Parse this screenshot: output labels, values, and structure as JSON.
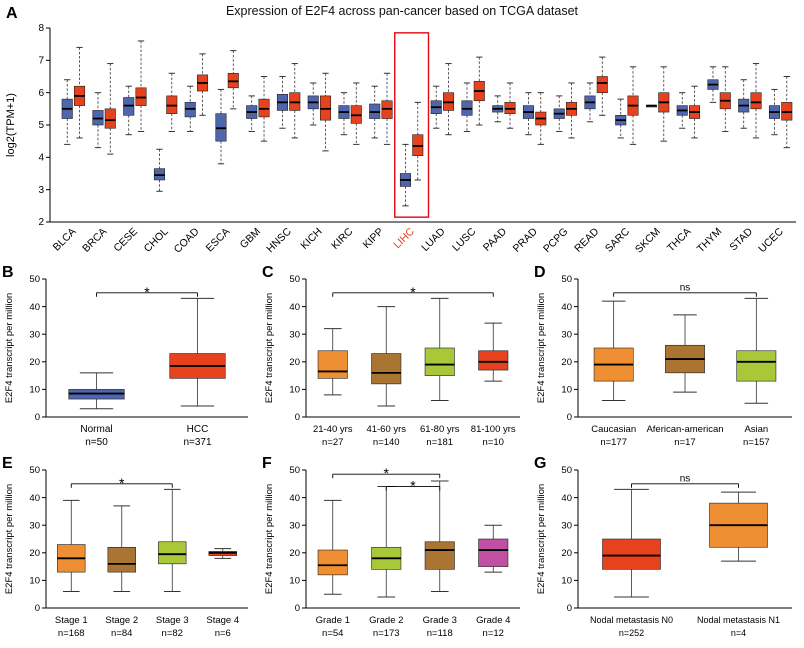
{
  "colors": {
    "normal_blue": "#4f66ac",
    "tumor_red": "#e6421e",
    "orange": "#ef8f33",
    "brown": "#aa7433",
    "green": "#a8c83a",
    "magenta": "#c150a5",
    "highlight_red": "#e30613",
    "axis_black": "#000000"
  },
  "chart_data": [
    {
      "id": "A",
      "letter": "A",
      "type": "paired_box",
      "title": "Expression of E2F4 across pan-cancer based on TCGA dataset",
      "ylabel": "log2(TPM+1)",
      "ylim": [
        2,
        8
      ],
      "yticks": [
        2,
        3,
        4,
        5,
        6,
        7,
        8
      ],
      "highlight": "LIHC",
      "series": [
        {
          "name": "Normal",
          "color": "normal_blue"
        },
        {
          "name": "Tumor",
          "color": "tumor_red"
        }
      ],
      "categories": [
        "BLCA",
        "BRCA",
        "CESE",
        "CHOL",
        "COAD",
        "ESCA",
        "GBM",
        "HNSC",
        "KICH",
        "KIRC",
        "KIPP",
        "LIHC",
        "LUAD",
        "LUSC",
        "PAAD",
        "PRAD",
        "PCPG",
        "READ",
        "SARC",
        "SKCM",
        "THCA",
        "THYM",
        "STAD",
        "UCEC"
      ],
      "normal": [
        [
          4.4,
          5.2,
          5.5,
          5.8,
          6.4
        ],
        [
          4.3,
          5.0,
          5.2,
          5.45,
          6.0
        ],
        [
          4.7,
          5.3,
          5.6,
          5.85,
          6.2
        ],
        [
          2.95,
          3.3,
          3.45,
          3.65,
          4.25
        ],
        [
          4.8,
          5.25,
          5.5,
          5.7,
          6.2
        ],
        [
          3.8,
          4.5,
          4.9,
          5.35,
          6.1
        ],
        [
          4.8,
          5.2,
          5.4,
          5.6,
          5.9
        ],
        [
          4.9,
          5.45,
          5.7,
          5.95,
          6.5
        ],
        [
          5.0,
          5.5,
          5.7,
          5.9,
          6.3
        ],
        [
          4.7,
          5.2,
          5.4,
          5.6,
          6.0
        ],
        [
          4.6,
          5.2,
          5.4,
          5.65,
          6.2
        ],
        [
          2.5,
          3.1,
          3.3,
          3.5,
          4.4
        ],
        [
          4.9,
          5.35,
          5.55,
          5.75,
          6.2
        ],
        [
          4.8,
          5.3,
          5.5,
          5.75,
          6.3
        ],
        [
          5.1,
          5.4,
          5.5,
          5.6,
          5.9
        ],
        [
          4.7,
          5.2,
          5.4,
          5.6,
          6.0
        ],
        [
          4.8,
          5.2,
          5.35,
          5.5,
          5.9
        ],
        [
          5.1,
          5.5,
          5.7,
          5.9,
          6.3
        ],
        [
          4.6,
          5.0,
          5.15,
          5.3,
          5.8
        ],
        [
          5.6,
          5.6,
          5.6,
          5.6,
          5.6
        ],
        [
          4.9,
          5.3,
          5.45,
          5.6,
          6.0
        ],
        [
          5.7,
          6.1,
          6.25,
          6.4,
          6.8
        ],
        [
          4.9,
          5.4,
          5.6,
          5.8,
          6.4
        ],
        [
          4.7,
          5.2,
          5.4,
          5.6,
          6.1
        ]
      ],
      "tumor": [
        [
          4.6,
          5.6,
          5.9,
          6.2,
          7.4
        ],
        [
          4.1,
          4.9,
          5.15,
          5.5,
          6.9
        ],
        [
          4.8,
          5.6,
          5.85,
          6.15,
          7.6
        ],
        [
          4.8,
          5.35,
          5.6,
          5.9,
          6.6
        ],
        [
          5.3,
          6.05,
          6.3,
          6.55,
          7.2
        ],
        [
          5.5,
          6.15,
          6.35,
          6.6,
          7.3
        ],
        [
          4.5,
          5.25,
          5.5,
          5.8,
          6.5
        ],
        [
          4.6,
          5.45,
          5.7,
          6.0,
          6.9
        ],
        [
          4.2,
          5.15,
          5.5,
          5.9,
          6.6
        ],
        [
          4.4,
          5.05,
          5.3,
          5.6,
          6.3
        ],
        [
          4.4,
          5.2,
          5.5,
          5.75,
          6.6
        ],
        [
          3.3,
          4.05,
          4.35,
          4.7,
          5.7
        ],
        [
          4.7,
          5.45,
          5.7,
          6.0,
          6.9
        ],
        [
          5.0,
          5.75,
          6.05,
          6.35,
          7.1
        ],
        [
          4.9,
          5.35,
          5.5,
          5.7,
          6.3
        ],
        [
          4.4,
          5.0,
          5.2,
          5.4,
          6.0
        ],
        [
          4.6,
          5.3,
          5.5,
          5.7,
          6.3
        ],
        [
          5.3,
          6.0,
          6.3,
          6.5,
          7.1
        ],
        [
          4.4,
          5.3,
          5.6,
          5.9,
          6.8
        ],
        [
          4.5,
          5.4,
          5.7,
          6.0,
          6.8
        ],
        [
          4.6,
          5.2,
          5.4,
          5.6,
          6.2
        ],
        [
          4.8,
          5.5,
          5.75,
          6.0,
          6.8
        ],
        [
          4.6,
          5.5,
          5.7,
          6.0,
          6.9
        ],
        [
          4.3,
          5.15,
          5.4,
          5.7,
          6.5
        ]
      ]
    },
    {
      "id": "B",
      "letter": "B",
      "type": "box",
      "ylabel": "E2F4 transcript per million",
      "ylim": [
        0,
        50
      ],
      "yticks": [
        0,
        10,
        20,
        30,
        40,
        50
      ],
      "categories": [
        "Normal",
        "HCC"
      ],
      "counts": [
        "n=50",
        "n=371"
      ],
      "colors": [
        "normal_blue",
        "tumor_red"
      ],
      "boxes": [
        [
          3,
          6.5,
          8.5,
          10,
          16
        ],
        [
          4,
          14,
          18.5,
          23,
          43
        ]
      ],
      "sig": [
        {
          "from": 0,
          "to": 1,
          "label": "*",
          "y": 45
        }
      ],
      "label_size": 10
    },
    {
      "id": "C",
      "letter": "C",
      "type": "box",
      "ylabel": "E2F4 transcript per million",
      "ylim": [
        0,
        50
      ],
      "yticks": [
        0,
        10,
        20,
        30,
        40,
        50
      ],
      "categories": [
        "21-40 yrs",
        "41-60 yrs",
        "61-80 yrs",
        "81-100 yrs"
      ],
      "counts": [
        "n=27",
        "n=140",
        "n=181",
        "n=10"
      ],
      "colors": [
        "orange",
        "brown",
        "green",
        "tumor_red"
      ],
      "boxes": [
        [
          8,
          14,
          16.5,
          24,
          32
        ],
        [
          4,
          12,
          16,
          23,
          40
        ],
        [
          6,
          15,
          19,
          25,
          43
        ],
        [
          13,
          17,
          20,
          24,
          34
        ]
      ],
      "sig": [
        {
          "from": 0,
          "to": 3,
          "label": "*",
          "y": 45
        }
      ],
      "label_size": 9.5
    },
    {
      "id": "D",
      "letter": "D",
      "type": "box",
      "ylabel": "E2F4 transcript per million",
      "ylim": [
        0,
        50
      ],
      "yticks": [
        0,
        10,
        20,
        30,
        40,
        50
      ],
      "categories": [
        "Caucasian",
        "Aferican-american",
        "Asian"
      ],
      "counts": [
        "n=177",
        "n=17",
        "n=157"
      ],
      "colors": [
        "orange",
        "brown",
        "green"
      ],
      "boxes": [
        [
          6,
          13,
          19,
          25,
          42
        ],
        [
          9,
          16,
          21,
          26,
          37
        ],
        [
          5,
          13,
          20,
          24,
          43
        ]
      ],
      "sig": [
        {
          "from": 0,
          "to": 2,
          "label": "ns",
          "y": 45
        }
      ],
      "label_size": 9.5
    },
    {
      "id": "E",
      "letter": "E",
      "type": "box",
      "ylabel": "E2F4 transcript per million",
      "ylim": [
        0,
        50
      ],
      "yticks": [
        0,
        10,
        20,
        30,
        40,
        50
      ],
      "categories": [
        "Stage 1",
        "Stage 2",
        "Stage 3",
        "Stage 4"
      ],
      "counts": [
        "n=168",
        "n=84",
        "n=82",
        "n=6"
      ],
      "colors": [
        "orange",
        "brown",
        "green",
        "tumor_red"
      ],
      "boxes": [
        [
          6,
          13,
          18,
          23,
          39
        ],
        [
          6,
          13,
          16,
          22,
          37
        ],
        [
          6,
          16,
          19.5,
          24,
          43
        ],
        [
          18,
          19,
          20,
          20.5,
          21.5
        ]
      ],
      "sig": [
        {
          "from": 0,
          "to": 2,
          "label": "*",
          "y": 45
        }
      ],
      "label_size": 9.5
    },
    {
      "id": "F",
      "letter": "F",
      "type": "box",
      "ylabel": "E2F4 transcript per million",
      "ylim": [
        0,
        50
      ],
      "yticks": [
        0,
        10,
        20,
        30,
        40,
        50
      ],
      "categories": [
        "Grade 1",
        "Grade 2",
        "Grade 3",
        "Grade 4"
      ],
      "counts": [
        "n=54",
        "n=173",
        "n=118",
        "n=12"
      ],
      "colors": [
        "orange",
        "green",
        "brown",
        "magenta"
      ],
      "boxes": [
        [
          5,
          12,
          15.5,
          21,
          39
        ],
        [
          4,
          14,
          18,
          22,
          44
        ],
        [
          6,
          14,
          21,
          24,
          46
        ],
        [
          13,
          15,
          21,
          25,
          30
        ]
      ],
      "sig": [
        {
          "from": 0,
          "to": 2,
          "label": "*",
          "y": 48.5
        },
        {
          "from": 1,
          "to": 2,
          "label": "*",
          "y": 44
        }
      ],
      "label_size": 9.5
    },
    {
      "id": "G",
      "letter": "G",
      "type": "box",
      "ylabel": "E2F4 transcript per million",
      "ylim": [
        0,
        50
      ],
      "yticks": [
        0,
        10,
        20,
        30,
        40,
        50
      ],
      "categories": [
        "Nodal metastasis N0",
        "Nodal metastasis N1"
      ],
      "counts": [
        "n=252",
        "n=4"
      ],
      "colors": [
        "tumor_red",
        "orange"
      ],
      "boxes": [
        [
          4,
          14,
          19,
          25,
          43
        ],
        [
          17,
          22,
          30,
          38,
          42
        ]
      ],
      "sig": [
        {
          "from": 0,
          "to": 1,
          "label": "ns",
          "y": 45
        }
      ],
      "label_size": 9
    }
  ]
}
